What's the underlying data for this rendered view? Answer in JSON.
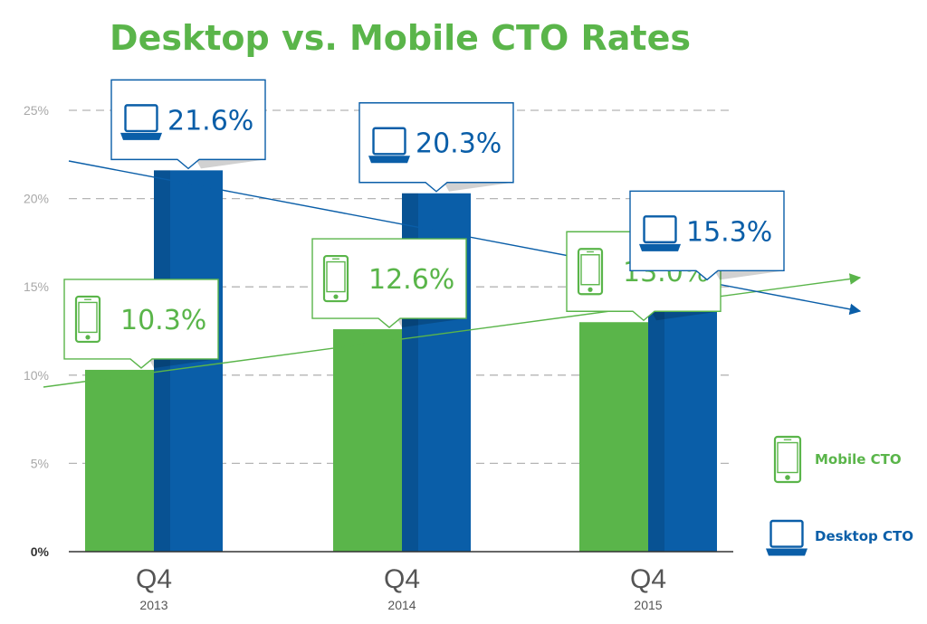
{
  "chart_data": {
    "type": "bar",
    "title": "Desktop vs. Mobile CTO Rates",
    "categories": [
      {
        "quarter": "Q4",
        "year": "2013"
      },
      {
        "quarter": "Q4",
        "year": "2014"
      },
      {
        "quarter": "Q4",
        "year": "2015"
      }
    ],
    "series": [
      {
        "name": "Mobile CTO",
        "icon": "phone-icon",
        "color": "#5ab54a",
        "values": [
          10.3,
          12.6,
          13.0
        ],
        "labels": [
          "10.3%",
          "12.6%",
          "13.0%"
        ]
      },
      {
        "name": "Desktop CTO",
        "icon": "laptop-icon",
        "color": "#0a5ea8",
        "values": [
          21.6,
          20.3,
          15.3
        ],
        "labels": [
          "21.6%",
          "20.3%",
          "15.3%"
        ]
      }
    ],
    "yticks": [
      {
        "value": 0,
        "label": "0%"
      },
      {
        "value": 5,
        "label": "5%"
      },
      {
        "value": 10,
        "label": "10%"
      },
      {
        "value": 15,
        "label": "15%"
      },
      {
        "value": 20,
        "label": "20%"
      },
      {
        "value": 25,
        "label": "25%"
      }
    ],
    "ylim": [
      0,
      25
    ],
    "grid": "dashed",
    "legend": "right",
    "trendlines": [
      {
        "series": "Mobile CTO",
        "direction": "up"
      },
      {
        "series": "Desktop CTO",
        "direction": "down"
      }
    ],
    "colors": {
      "title": "#5ab54a",
      "mobile": "#5ab54a",
      "desktop": "#0a5ea8",
      "grid": "#b5b5b5"
    }
  }
}
